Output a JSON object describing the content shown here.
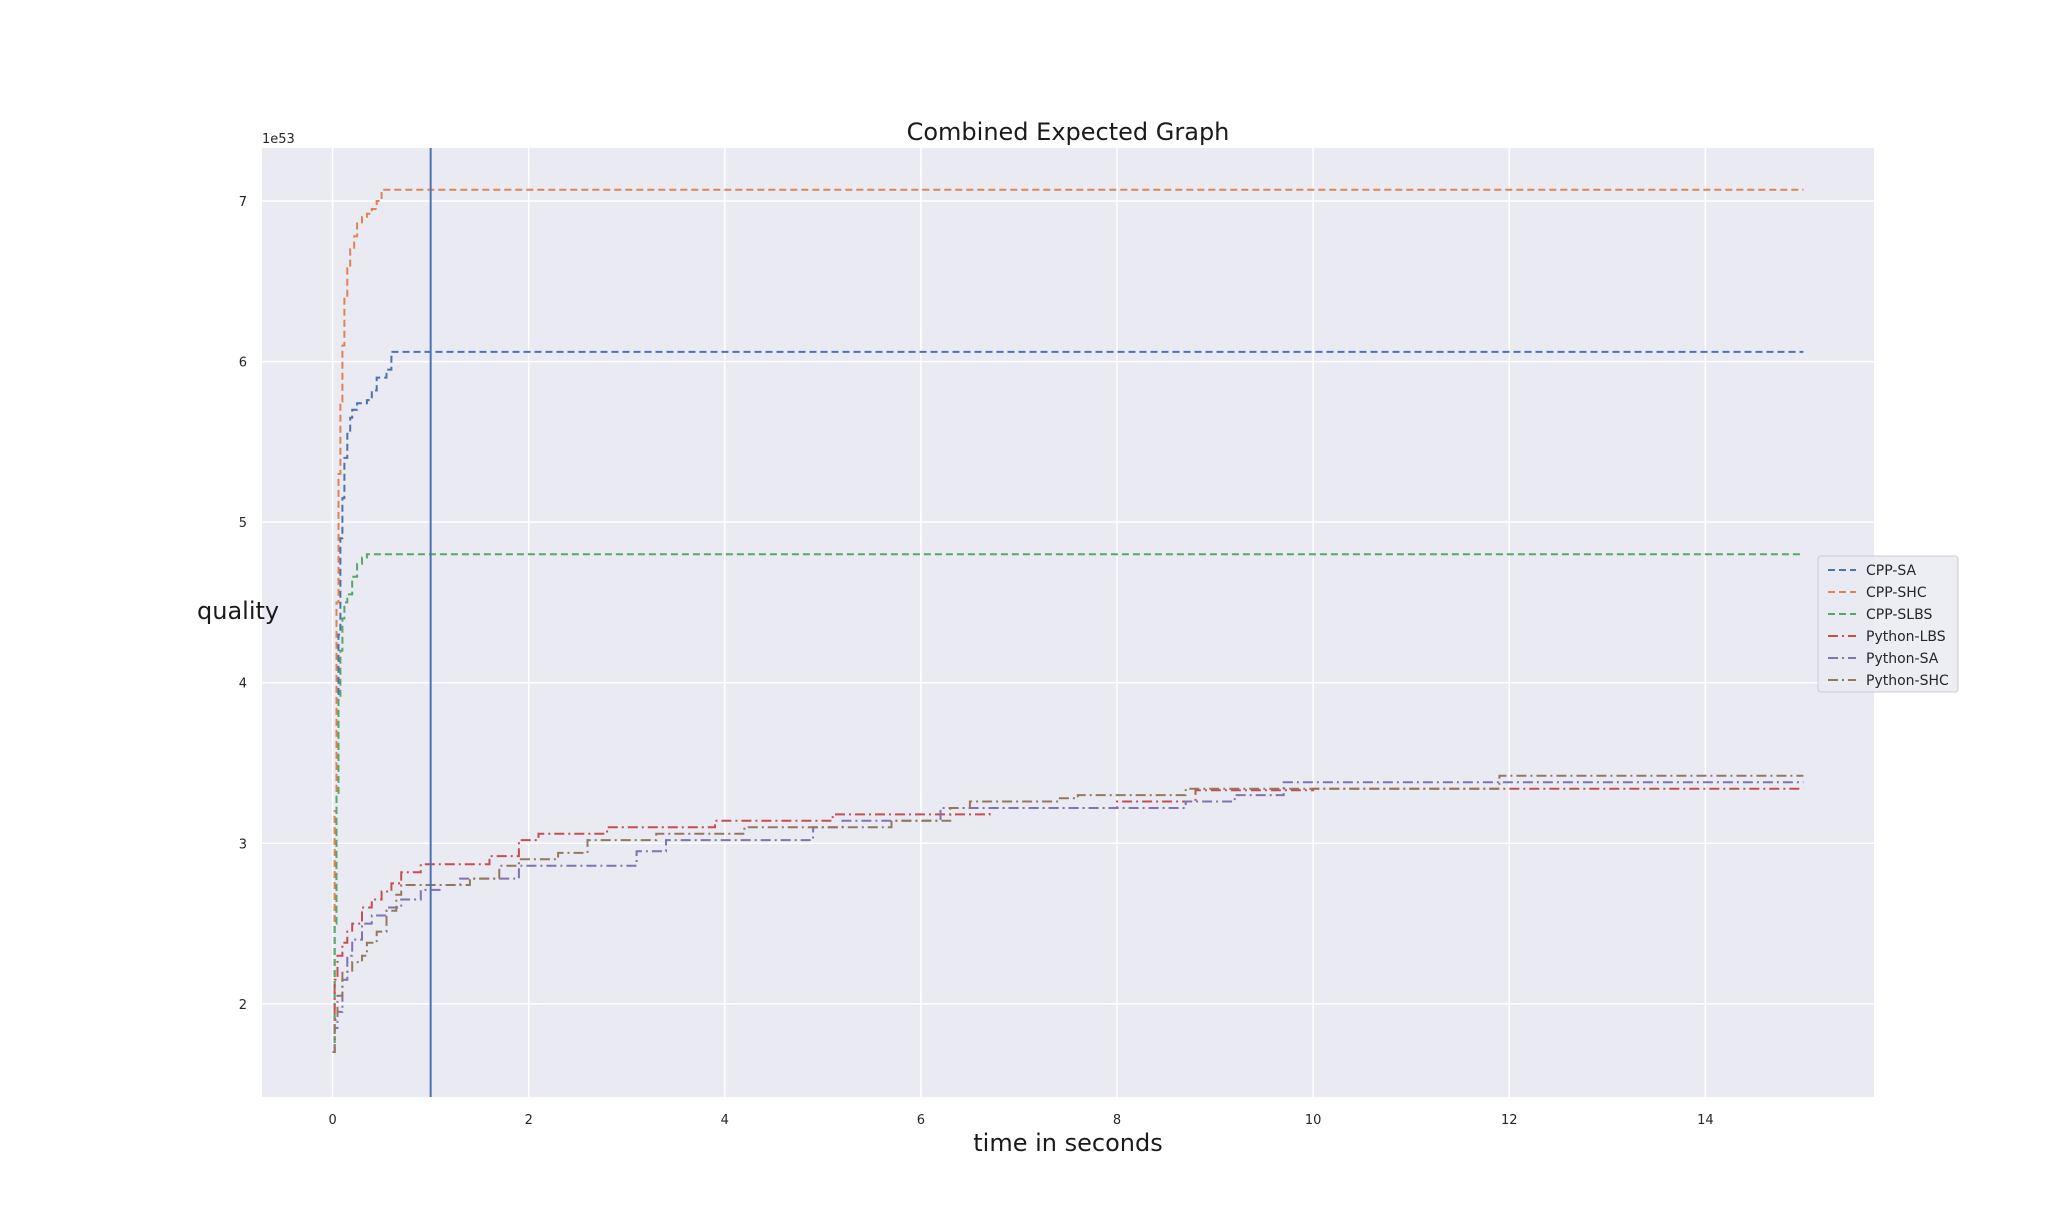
{
  "chart_data": {
    "type": "line",
    "title": "Combined Expected Graph",
    "xlabel": "time in seconds",
    "ylabel": "quality",
    "y_multiplier_label": "1e53",
    "xlim": [
      -0.72,
      15.72
    ],
    "ylim": [
      1.42,
      7.33
    ],
    "x_ticks": [
      0,
      2,
      4,
      6,
      8,
      10,
      12,
      14
    ],
    "y_ticks": [
      2,
      3,
      4,
      5,
      6,
      7
    ],
    "grid": true,
    "legend_position": "right",
    "vertical_marker_x": 1.0,
    "series": [
      {
        "name": "CPP-SA",
        "color": "#4c72b0",
        "dash": "dashed",
        "points": [
          [
            0,
            1.7
          ],
          [
            0.02,
            2.6
          ],
          [
            0.04,
            3.5
          ],
          [
            0.06,
            4.3
          ],
          [
            0.08,
            4.9
          ],
          [
            0.1,
            5.15
          ],
          [
            0.12,
            5.4
          ],
          [
            0.15,
            5.55
          ],
          [
            0.18,
            5.65
          ],
          [
            0.2,
            5.7
          ],
          [
            0.25,
            5.74
          ],
          [
            0.35,
            5.76
          ],
          [
            0.4,
            5.82
          ],
          [
            0.45,
            5.9
          ],
          [
            0.55,
            5.95
          ],
          [
            0.6,
            6.06
          ],
          [
            15,
            6.06
          ]
        ]
      },
      {
        "name": "CPP-SHC",
        "color": "#dd8452",
        "dash": "dashed",
        "points": [
          [
            0,
            1.7
          ],
          [
            0.02,
            3.2
          ],
          [
            0.04,
            4.5
          ],
          [
            0.06,
            5.3
          ],
          [
            0.08,
            5.75
          ],
          [
            0.1,
            6.1
          ],
          [
            0.12,
            6.4
          ],
          [
            0.15,
            6.58
          ],
          [
            0.18,
            6.7
          ],
          [
            0.22,
            6.78
          ],
          [
            0.25,
            6.86
          ],
          [
            0.3,
            6.9
          ],
          [
            0.35,
            6.92
          ],
          [
            0.4,
            6.95
          ],
          [
            0.45,
            7.0
          ],
          [
            0.5,
            7.07
          ],
          [
            15,
            7.07
          ]
        ]
      },
      {
        "name": "CPP-SLBS",
        "color": "#55a868",
        "dash": "dashed",
        "points": [
          [
            0,
            1.7
          ],
          [
            0.02,
            2.5
          ],
          [
            0.04,
            3.3
          ],
          [
            0.06,
            3.9
          ],
          [
            0.08,
            4.2
          ],
          [
            0.1,
            4.4
          ],
          [
            0.12,
            4.5
          ],
          [
            0.15,
            4.55
          ],
          [
            0.2,
            4.66
          ],
          [
            0.25,
            4.74
          ],
          [
            0.3,
            4.78
          ],
          [
            0.35,
            4.8
          ],
          [
            15,
            4.8
          ]
        ]
      },
      {
        "name": "Python-LBS",
        "color": "#c44e52",
        "dash": "dashdot",
        "points": [
          [
            0,
            1.7
          ],
          [
            0.02,
            2.15
          ],
          [
            0.05,
            2.3
          ],
          [
            0.1,
            2.38
          ],
          [
            0.15,
            2.45
          ],
          [
            0.2,
            2.5
          ],
          [
            0.3,
            2.6
          ],
          [
            0.4,
            2.65
          ],
          [
            0.5,
            2.7
          ],
          [
            0.6,
            2.75
          ],
          [
            0.7,
            2.82
          ],
          [
            0.9,
            2.87
          ],
          [
            1.4,
            2.87
          ],
          [
            1.6,
            2.92
          ],
          [
            1.9,
            3.02
          ],
          [
            2.1,
            3.06
          ],
          [
            2.5,
            3.06
          ],
          [
            2.8,
            3.1
          ],
          [
            3.5,
            3.1
          ],
          [
            3.9,
            3.14
          ],
          [
            4.9,
            3.14
          ],
          [
            5.1,
            3.18
          ],
          [
            6.5,
            3.18
          ],
          [
            6.7,
            3.22
          ],
          [
            7.9,
            3.22
          ],
          [
            8.0,
            3.26
          ],
          [
            8.7,
            3.26
          ],
          [
            8.8,
            3.33
          ],
          [
            9.8,
            3.33
          ],
          [
            10.0,
            3.34
          ],
          [
            15,
            3.34
          ]
        ]
      },
      {
        "name": "Python-SA",
        "color": "#8172b3",
        "dash": "dashdot",
        "points": [
          [
            0,
            1.7
          ],
          [
            0.02,
            1.85
          ],
          [
            0.05,
            1.95
          ],
          [
            0.1,
            2.15
          ],
          [
            0.15,
            2.3
          ],
          [
            0.2,
            2.4
          ],
          [
            0.3,
            2.5
          ],
          [
            0.4,
            2.55
          ],
          [
            0.55,
            2.6
          ],
          [
            0.7,
            2.65
          ],
          [
            0.9,
            2.71
          ],
          [
            1.1,
            2.74
          ],
          [
            1.3,
            2.78
          ],
          [
            1.7,
            2.78
          ],
          [
            1.9,
            2.86
          ],
          [
            2.9,
            2.86
          ],
          [
            3.1,
            2.95
          ],
          [
            3.4,
            3.02
          ],
          [
            4.7,
            3.02
          ],
          [
            4.9,
            3.1
          ],
          [
            5.2,
            3.14
          ],
          [
            5.9,
            3.14
          ],
          [
            6.2,
            3.22
          ],
          [
            8.4,
            3.22
          ],
          [
            8.7,
            3.26
          ],
          [
            9.2,
            3.3
          ],
          [
            9.7,
            3.38
          ],
          [
            15,
            3.38
          ]
        ]
      },
      {
        "name": "Python-SHC",
        "color": "#937860",
        "dash": "dashdot",
        "points": [
          [
            0,
            1.7
          ],
          [
            0.02,
            1.9
          ],
          [
            0.05,
            2.05
          ],
          [
            0.1,
            2.2
          ],
          [
            0.2,
            2.26
          ],
          [
            0.3,
            2.3
          ],
          [
            0.35,
            2.38
          ],
          [
            0.45,
            2.45
          ],
          [
            0.55,
            2.58
          ],
          [
            0.65,
            2.68
          ],
          [
            0.7,
            2.74
          ],
          [
            1.4,
            2.78
          ],
          [
            1.7,
            2.86
          ],
          [
            1.9,
            2.9
          ],
          [
            2.3,
            2.94
          ],
          [
            2.6,
            3.02
          ],
          [
            3.3,
            3.06
          ],
          [
            4.2,
            3.1
          ],
          [
            5.7,
            3.14
          ],
          [
            6.3,
            3.22
          ],
          [
            6.5,
            3.26
          ],
          [
            7.4,
            3.28
          ],
          [
            7.6,
            3.3
          ],
          [
            8.6,
            3.3
          ],
          [
            8.7,
            3.34
          ],
          [
            11.8,
            3.34
          ],
          [
            11.9,
            3.42
          ],
          [
            15,
            3.42
          ]
        ]
      }
    ]
  }
}
